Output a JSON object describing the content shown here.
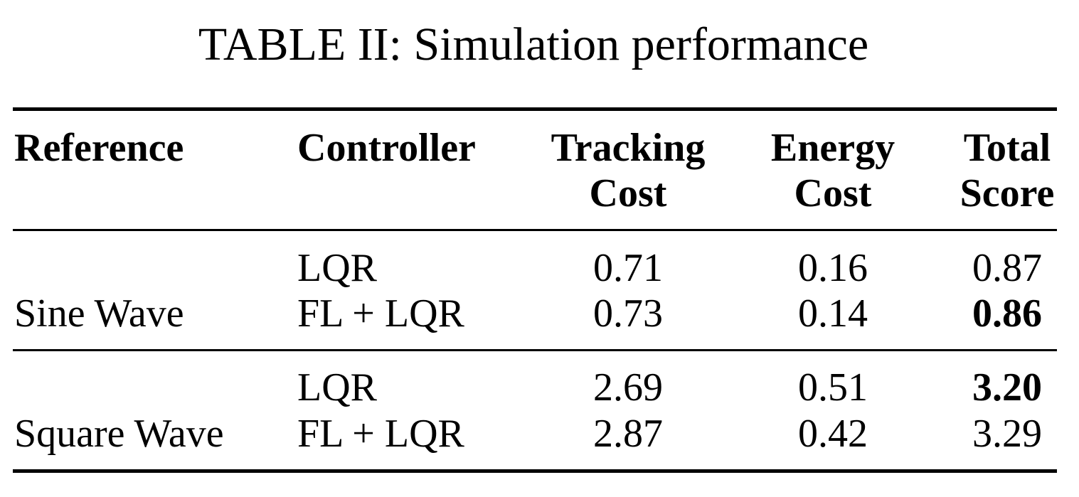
{
  "caption": "TABLE II: Simulation performance",
  "header": {
    "reference": "Reference",
    "controller": "Controller",
    "tracking": [
      "Tracking",
      "Cost"
    ],
    "energy": [
      "Energy",
      "Cost"
    ],
    "total": [
      "Total",
      "Score"
    ]
  },
  "groups": [
    {
      "reference": "Sine Wave",
      "rows": [
        {
          "controller": "LQR",
          "tracking": "0.71",
          "energy": "0.16",
          "total": "0.87",
          "best": false
        },
        {
          "controller": "FL + LQR",
          "tracking": "0.73",
          "energy": "0.14",
          "total": "0.86",
          "best": true
        }
      ]
    },
    {
      "reference": "Square Wave",
      "rows": [
        {
          "controller": "LQR",
          "tracking": "2.69",
          "energy": "0.51",
          "total": "3.20",
          "best": true
        },
        {
          "controller": "FL + LQR",
          "tracking": "2.87",
          "energy": "0.42",
          "total": "3.29",
          "best": false
        }
      ]
    }
  ]
}
